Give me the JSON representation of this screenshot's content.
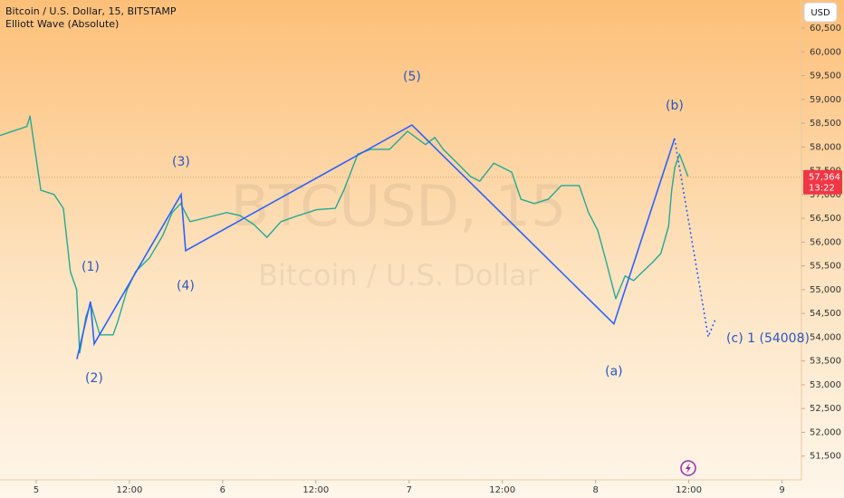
{
  "header": {
    "symbol": "Bitcoin / U.S. Dollar, 15, BITSTAMP",
    "indicator": "Elliott Wave (Absolute)"
  },
  "currency_button": "USD",
  "watermark": {
    "ticker": "BTCUSD, 15",
    "name": "Bitcoin / U.S. Dollar"
  },
  "chart_data": {
    "type": "line",
    "xlim": [
      -4.66,
      98.5
    ],
    "ylim": [
      51000,
      61090
    ],
    "xticks": [
      {
        "value": 0,
        "label": "5"
      },
      {
        "value": 12,
        "label": "12:00"
      },
      {
        "value": 24,
        "label": "6"
      },
      {
        "value": 36,
        "label": "12:00"
      },
      {
        "value": 48,
        "label": "7"
      },
      {
        "value": 60,
        "label": "12:00"
      },
      {
        "value": 72,
        "label": "8"
      },
      {
        "value": 84,
        "label": "12:00"
      },
      {
        "value": 96,
        "label": "9"
      }
    ],
    "yticks": [
      {
        "value": 51500,
        "label": "51,500"
      },
      {
        "value": 52000,
        "label": "52,000"
      },
      {
        "value": 52500,
        "label": "52,500"
      },
      {
        "value": 53000,
        "label": "53,000"
      },
      {
        "value": 53500,
        "label": "53,500"
      },
      {
        "value": 54000,
        "label": "54,000"
      },
      {
        "value": 54500,
        "label": "54,500"
      },
      {
        "value": 55000,
        "label": "55,000"
      },
      {
        "value": 55500,
        "label": "55,500"
      },
      {
        "value": 56000,
        "label": "56,000"
      },
      {
        "value": 56500,
        "label": "56,500"
      },
      {
        "value": 57000,
        "label": "57,000"
      },
      {
        "value": 57500,
        "label": "57,500"
      },
      {
        "value": 58000,
        "label": "58,000"
      },
      {
        "value": 58500,
        "label": "58,500"
      },
      {
        "value": 59000,
        "label": "59,000"
      },
      {
        "value": 59500,
        "label": "59,500"
      },
      {
        "value": 60000,
        "label": "60,000"
      },
      {
        "value": 60500,
        "label": "60,500"
      }
    ],
    "x": [
      -4.7,
      -1.2,
      -0.8,
      0.6,
      2.3,
      3.5,
      4.4,
      5.2,
      5.6,
      6.4,
      7.0,
      8.2,
      9.9,
      10.5,
      11.7,
      12.8,
      14.6,
      16.3,
      17.5,
      18.6,
      19.8,
      22.1,
      24.5,
      26.2,
      28.0,
      29.7,
      31.5,
      33.8,
      36.1,
      38.5,
      39.6,
      41.4,
      43.1,
      45.5,
      47.8,
      50.1,
      51.3,
      52.4,
      54.2,
      55.9,
      57.1,
      58.9,
      61.2,
      62.4,
      64.1,
      65.9,
      67.6,
      69.9,
      71.1,
      72.3,
      73.4,
      74.6,
      75.8,
      76.9,
      78.1,
      79.3,
      80.4,
      81.4,
      81.8,
      82.2,
      82.8,
      83.9
    ],
    "series": [
      {
        "color": "#22ab94",
        "values": [
          58240,
          58430,
          58650,
          57090,
          57000,
          56710,
          55380,
          55000,
          53670,
          54430,
          54710,
          54050,
          54050,
          54330,
          55000,
          55380,
          55670,
          56140,
          56620,
          56810,
          56430,
          56520,
          56620,
          56560,
          56370,
          56100,
          56430,
          56560,
          56680,
          56710,
          57090,
          57850,
          57950,
          57950,
          58330,
          58050,
          58200,
          57950,
          57660,
          57380,
          57280,
          57660,
          57470,
          56900,
          56810,
          56900,
          57190,
          57190,
          56620,
          56240,
          55570,
          54810,
          55290,
          55190,
          55380,
          55570,
          55760,
          56330,
          57090,
          57570,
          57850,
          57380
        ]
      }
    ],
    "wave": {
      "color": "#2962ff",
      "x": [
        5.24,
        6.99,
        7.46,
        18.65,
        19.23,
        48.37,
        74.36,
        82.17
      ],
      "values": [
        53540,
        54750,
        53860,
        57000,
        55820,
        58460,
        54280,
        58180
      ],
      "labels": [
        null,
        "(1)",
        "(2)",
        "(3)",
        "(4)",
        "(5)",
        "(a)",
        "(b)"
      ]
    },
    "projection": {
      "x": [
        82.17,
        86.5,
        87.4
      ],
      "values": [
        58180,
        54008,
        54370
      ],
      "labels": [
        null,
        "(c) 1 (54008)",
        null
      ]
    },
    "last_price": {
      "value": 57364,
      "label": "57,364",
      "countdown": "13:22",
      "color": "#f23645"
    }
  }
}
